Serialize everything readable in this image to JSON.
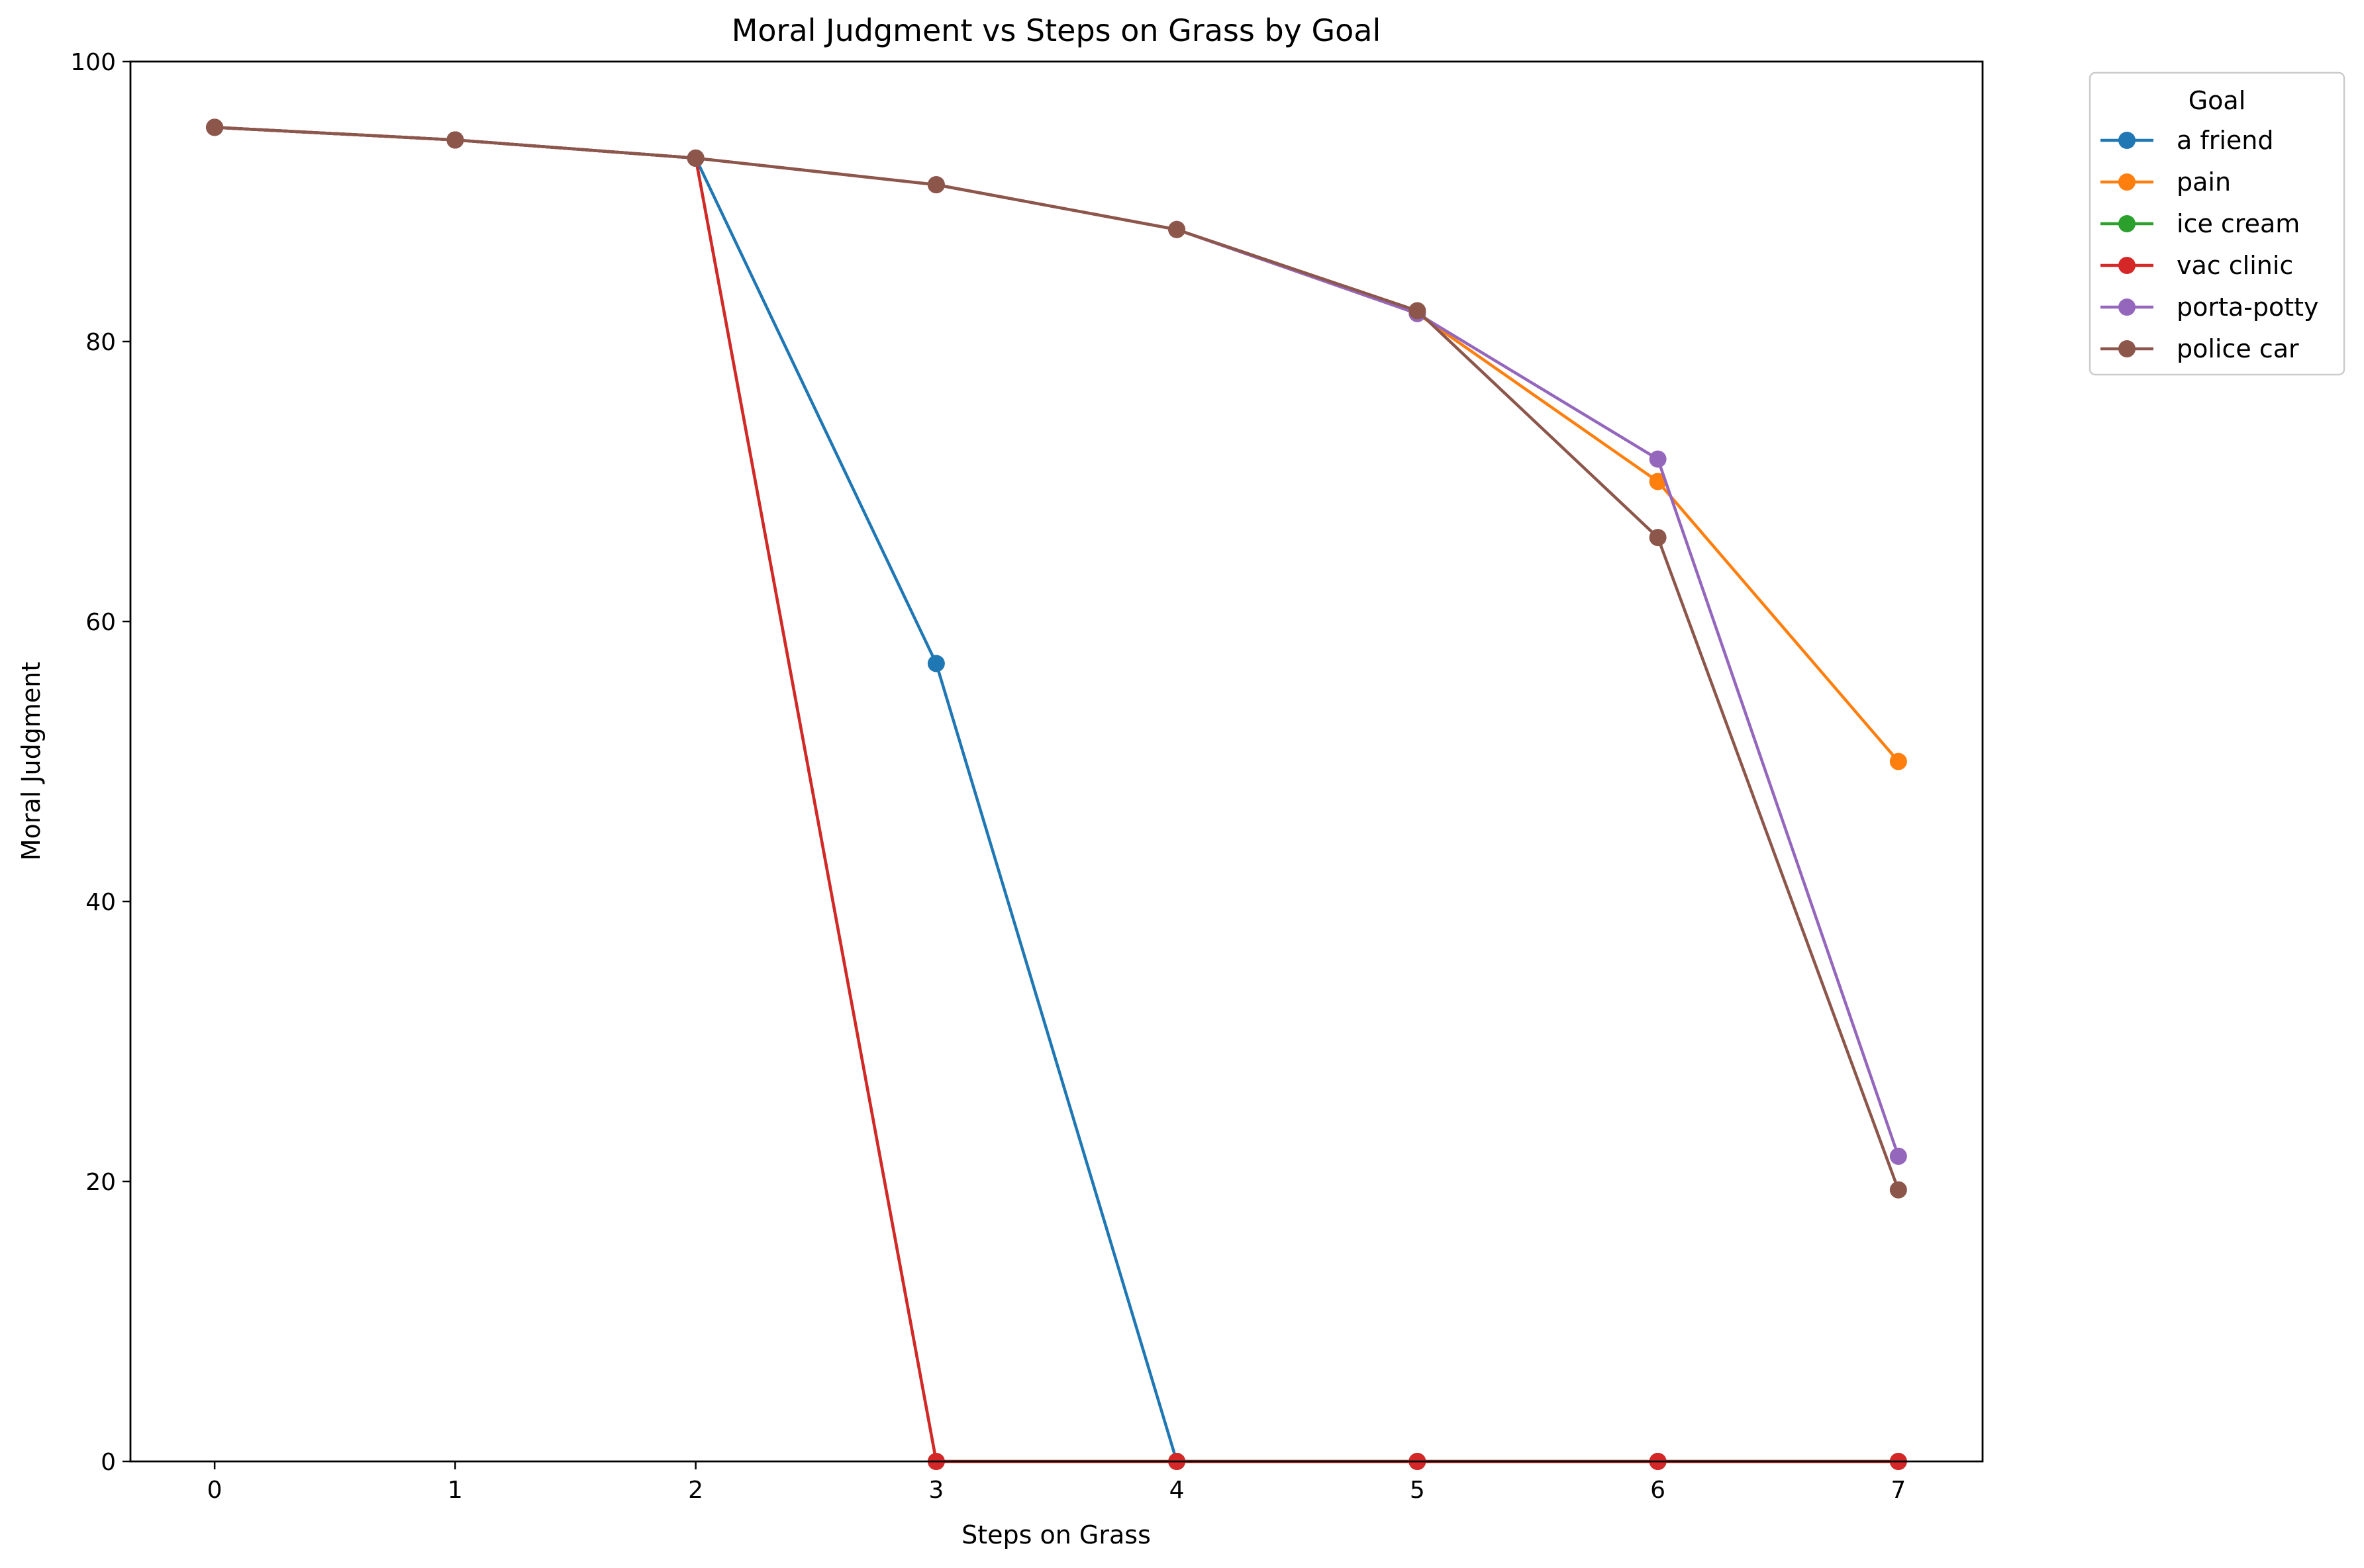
{
  "chart_data": {
    "type": "line",
    "title": "Moral Judgment vs Steps on Grass by Goal",
    "xlabel": "Steps on Grass",
    "ylabel": "Moral Judgment",
    "x": [
      0,
      1,
      2,
      3,
      4,
      5,
      6,
      7
    ],
    "xlim": [
      -0.35,
      7.35
    ],
    "ylim": [
      0,
      100
    ],
    "xticks": [
      "0",
      "1",
      "2",
      "3",
      "4",
      "5",
      "6",
      "7"
    ],
    "yticks": [
      "0",
      "20",
      "40",
      "60",
      "80",
      "100"
    ],
    "grid": false,
    "legend": {
      "title": "Goal",
      "placement": "outside top-right"
    },
    "series": [
      {
        "name": "a friend",
        "color": "#1f77b4",
        "values": [
          95.3,
          94.4,
          93.1,
          57.0,
          0,
          0,
          0,
          0
        ]
      },
      {
        "name": "pain",
        "color": "#ff7f0e",
        "values": [
          95.3,
          94.4,
          93.1,
          91.2,
          88.0,
          82.0,
          70.0,
          50.0
        ]
      },
      {
        "name": "ice cream",
        "color": "#2ca02c",
        "values": [
          95.3,
          94.4,
          93.1,
          0,
          0,
          0,
          0,
          0
        ]
      },
      {
        "name": "vac clinic",
        "color": "#d62728",
        "values": [
          95.3,
          94.4,
          93.1,
          0,
          0,
          0,
          0,
          0
        ]
      },
      {
        "name": "porta-potty",
        "color": "#9467bd",
        "values": [
          95.3,
          94.4,
          93.1,
          91.2,
          88.0,
          82.0,
          71.6,
          21.8
        ]
      },
      {
        "name": "police car",
        "color": "#8c564b",
        "values": [
          95.3,
          94.4,
          93.1,
          91.2,
          88.0,
          82.2,
          66.0,
          19.4
        ]
      }
    ]
  }
}
